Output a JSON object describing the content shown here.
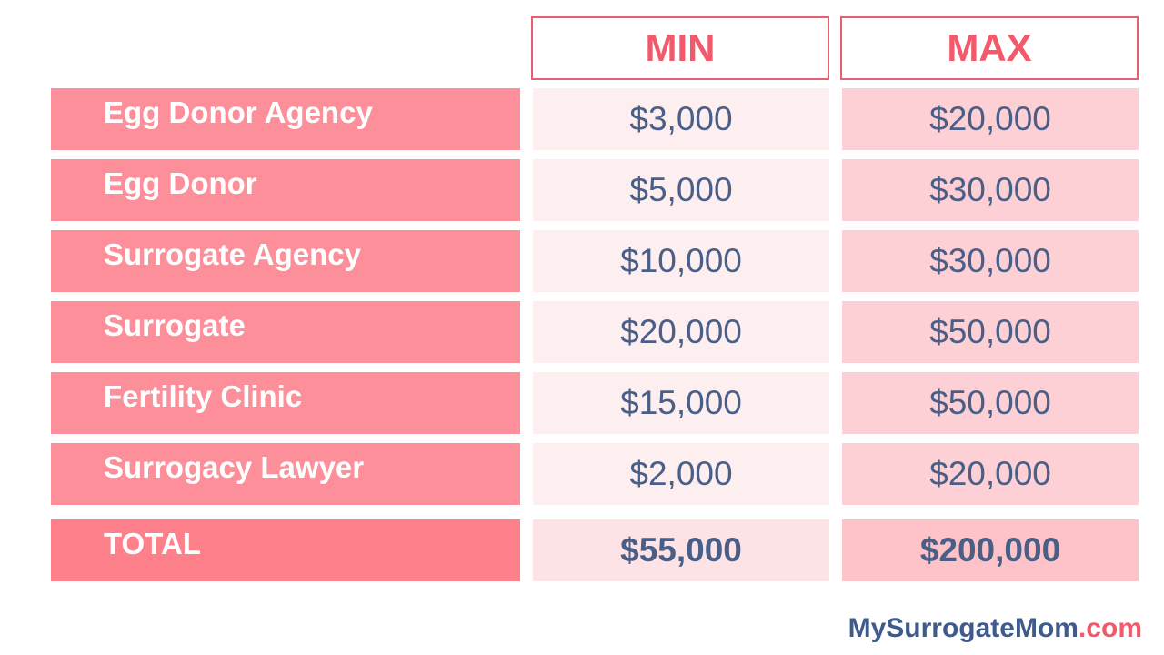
{
  "table": {
    "headers": [
      "MIN",
      "MAX"
    ],
    "rows": [
      [
        "Egg Donor Agency",
        "$3,000",
        "$20,000"
      ],
      [
        "Egg Donor",
        "$5,000",
        "$30,000"
      ],
      [
        "Surrogate Agency",
        "$10,000",
        "$30,000"
      ],
      [
        "Surrogate",
        "$20,000",
        "$50,000"
      ],
      [
        "Fertility Clinic",
        "$15,000",
        "$50,000"
      ],
      [
        "Surrogacy Lawyer",
        "$2,000",
        "$20,000"
      ]
    ],
    "total": [
      "TOTAL",
      "$55,000",
      "$200,000"
    ]
  },
  "brand": {
    "name": "MySurrogateMom",
    "tld": ".com"
  }
}
